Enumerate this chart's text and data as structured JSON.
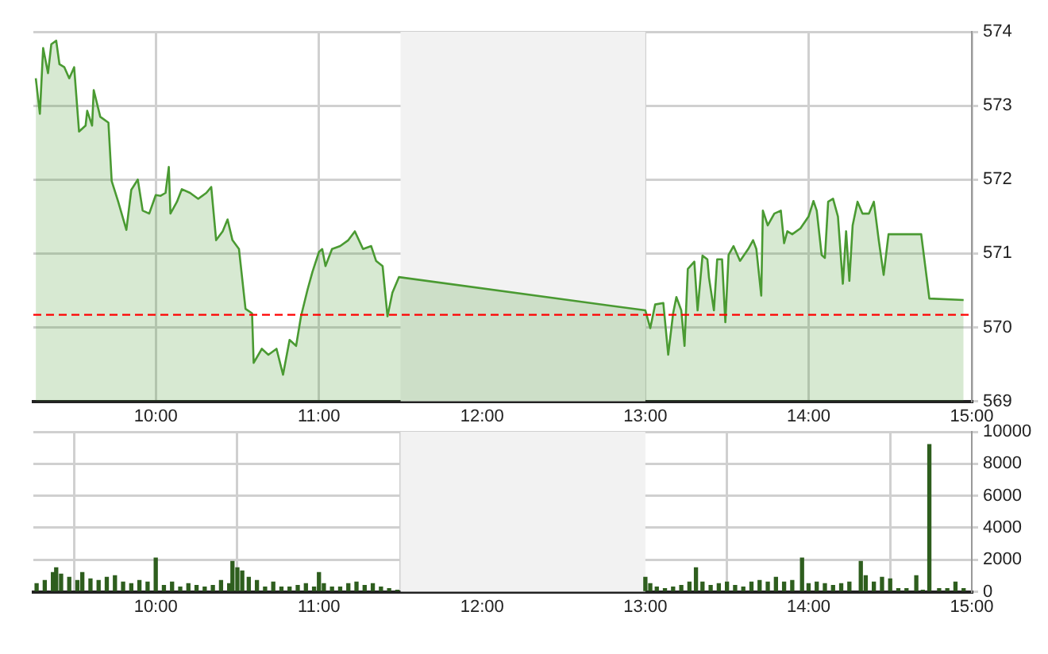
{
  "chart_data": [
    {
      "type": "area",
      "x": [
        9.265,
        9.29,
        9.31,
        9.34,
        9.36,
        9.39,
        9.41,
        9.44,
        9.47,
        9.5,
        9.53,
        9.57,
        9.58,
        9.61,
        9.62,
        9.66,
        9.71,
        9.73,
        9.77,
        9.82,
        9.85,
        9.89,
        9.92,
        9.96,
        10.0,
        10.03,
        10.06,
        10.08,
        10.09,
        10.13,
        10.16,
        10.21,
        10.26,
        10.31,
        10.34,
        10.37,
        10.41,
        10.44,
        10.47,
        10.51,
        10.55,
        10.59,
        10.6,
        10.65,
        10.69,
        10.74,
        10.78,
        10.82,
        10.86,
        10.89,
        10.93,
        10.96,
        11.0,
        11.02,
        11.04,
        11.08,
        11.13,
        11.18,
        11.22,
        11.27,
        11.32,
        11.35,
        11.39,
        11.42,
        11.45,
        11.49,
        13.0,
        13.03,
        13.06,
        13.11,
        13.14,
        13.17,
        13.19,
        13.22,
        13.24,
        13.26,
        13.3,
        13.32,
        13.35,
        13.38,
        13.39,
        13.42,
        13.44,
        13.47,
        13.49,
        13.51,
        13.54,
        13.58,
        13.63,
        13.66,
        13.68,
        13.71,
        13.72,
        13.75,
        13.79,
        13.83,
        13.85,
        13.87,
        13.9,
        13.95,
        14.0,
        14.03,
        14.05,
        14.08,
        14.1,
        14.12,
        14.15,
        14.18,
        14.21,
        14.23,
        14.25,
        14.27,
        14.3,
        14.33,
        14.37,
        14.4,
        14.43,
        14.46,
        14.49,
        14.69,
        14.74,
        14.95
      ],
      "series": [
        {
          "color": "#4a9a32",
          "values": [
            573.37,
            572.89,
            573.78,
            573.44,
            573.83,
            573.88,
            573.56,
            573.52,
            573.37,
            573.52,
            572.65,
            572.73,
            572.93,
            572.73,
            573.21,
            572.85,
            572.77,
            571.98,
            571.7,
            571.32,
            571.86,
            572.0,
            571.58,
            571.54,
            571.79,
            571.78,
            571.82,
            572.17,
            571.54,
            571.7,
            571.87,
            571.82,
            571.74,
            571.82,
            571.9,
            571.18,
            571.3,
            571.46,
            571.18,
            571.06,
            570.25,
            570.19,
            569.52,
            569.71,
            569.63,
            569.71,
            569.36,
            569.83,
            569.75,
            570.15,
            570.51,
            570.75,
            571.02,
            571.06,
            570.83,
            571.06,
            571.1,
            571.18,
            571.3,
            571.06,
            571.1,
            570.9,
            570.83,
            570.15,
            570.47,
            570.68,
            570.23,
            569.99,
            570.31,
            570.33,
            569.63,
            570.19,
            570.41,
            570.23,
            569.75,
            570.79,
            570.89,
            570.23,
            570.97,
            570.92,
            570.67,
            570.23,
            570.92,
            570.92,
            570.07,
            570.98,
            571.1,
            570.9,
            571.06,
            571.18,
            571.06,
            570.43,
            571.58,
            571.38,
            571.54,
            571.58,
            571.14,
            571.3,
            571.26,
            571.34,
            571.5,
            571.71,
            571.58,
            570.98,
            570.94,
            571.7,
            571.74,
            571.5,
            570.59,
            571.3,
            570.63,
            571.38,
            571.7,
            571.54,
            571.54,
            571.7,
            571.18,
            570.71,
            571.26,
            571.26,
            570.39,
            570.37
          ]
        }
      ],
      "xlim": [
        9.25,
        15
      ],
      "xticks": [
        {
          "value": 10,
          "label": "10:00"
        },
        {
          "value": 11,
          "label": "11:00"
        },
        {
          "value": 12,
          "label": "12:00"
        },
        {
          "value": 13,
          "label": "13:00"
        },
        {
          "value": 14,
          "label": "14:00"
        },
        {
          "value": 15,
          "label": "15:00"
        }
      ],
      "ylim": [
        569,
        574
      ],
      "yticks": [
        569,
        570,
        571,
        572,
        573,
        574
      ],
      "ref_lines": [
        {
          "axis": "y",
          "value": 570.17,
          "color": "#ff0000",
          "line_style": "dashed"
        }
      ],
      "bands": [
        {
          "axis": "x",
          "from": 11.5,
          "to": 13,
          "color": "#f2f2f2"
        }
      ],
      "grid": true,
      "legend": false,
      "marker": "none",
      "line_style": "solid"
    },
    {
      "type": "bar",
      "x": [
        9.27,
        9.32,
        9.37,
        9.39,
        9.42,
        9.47,
        9.52,
        9.55,
        9.6,
        9.65,
        9.7,
        9.75,
        9.8,
        9.85,
        9.9,
        9.95,
        10.0,
        10.05,
        10.1,
        10.15,
        10.2,
        10.25,
        10.3,
        10.35,
        10.4,
        10.45,
        10.47,
        10.5,
        10.53,
        10.57,
        10.62,
        10.67,
        10.72,
        10.77,
        10.82,
        10.87,
        10.92,
        10.97,
        11.0,
        11.03,
        11.08,
        11.13,
        11.18,
        11.23,
        11.28,
        11.33,
        11.38,
        11.43,
        11.48,
        13.0,
        13.03,
        13.07,
        13.12,
        13.17,
        13.22,
        13.27,
        13.31,
        13.35,
        13.4,
        13.45,
        13.5,
        13.55,
        13.6,
        13.65,
        13.7,
        13.75,
        13.8,
        13.85,
        13.9,
        13.96,
        14.0,
        14.05,
        14.1,
        14.15,
        14.2,
        14.25,
        14.32,
        14.35,
        14.4,
        14.45,
        14.5,
        14.55,
        14.6,
        14.66,
        14.7,
        14.74,
        14.8,
        14.85,
        14.9,
        14.95
      ],
      "series": [
        {
          "color": "#2e5e1e",
          "values": [
            500,
            700,
            1200,
            1500,
            1100,
            900,
            700,
            1200,
            800,
            700,
            900,
            1000,
            600,
            500,
            700,
            600,
            2100,
            400,
            600,
            300,
            500,
            400,
            300,
            400,
            700,
            500,
            1900,
            1500,
            1300,
            900,
            700,
            300,
            600,
            300,
            300,
            400,
            500,
            300,
            1200,
            500,
            300,
            300,
            500,
            600,
            400,
            500,
            300,
            200,
            100,
            900,
            500,
            300,
            200,
            300,
            400,
            600,
            1500,
            600,
            400,
            500,
            600,
            400,
            300,
            600,
            700,
            600,
            900,
            600,
            700,
            2100,
            500,
            600,
            500,
            400,
            500,
            600,
            1900,
            1000,
            600,
            900,
            800,
            200,
            200,
            1000,
            100,
            9200,
            200,
            200,
            600,
            200
          ]
        }
      ],
      "xlim": [
        9.25,
        15
      ],
      "xticks": [
        {
          "value": 10,
          "label": "10:00"
        },
        {
          "value": 11,
          "label": "11:00"
        },
        {
          "value": 12,
          "label": "12:00"
        },
        {
          "value": 13,
          "label": "13:00"
        },
        {
          "value": 14,
          "label": "14:00"
        },
        {
          "value": 15,
          "label": "15:00"
        }
      ],
      "ylim": [
        0,
        10000
      ],
      "yticks": [
        0,
        2000,
        4000,
        6000,
        8000,
        10000
      ],
      "bands": [
        {
          "axis": "x",
          "from": 11.5,
          "to": 13,
          "color": "#f2f2f2"
        }
      ],
      "grid": true,
      "legend": false
    }
  ]
}
